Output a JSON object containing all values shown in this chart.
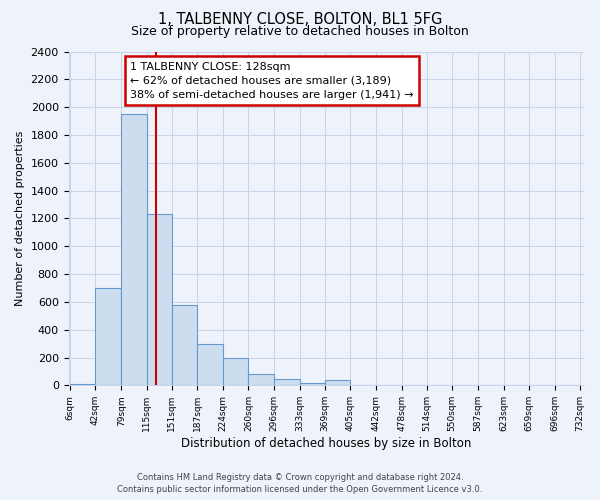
{
  "title": "1, TALBENNY CLOSE, BOLTON, BL1 5FG",
  "subtitle": "Size of property relative to detached houses in Bolton",
  "xlabel": "Distribution of detached houses by size in Bolton",
  "ylabel": "Number of detached properties",
  "bin_edges": [
    6,
    42,
    79,
    115,
    151,
    187,
    224,
    260,
    296,
    333,
    369,
    405,
    442,
    478,
    514,
    550,
    587,
    623,
    659,
    696,
    732
  ],
  "bar_heights": [
    10,
    700,
    1950,
    1230,
    580,
    300,
    200,
    80,
    45,
    20,
    35,
    5,
    3,
    2,
    1,
    1,
    1,
    1,
    1,
    1
  ],
  "bar_color": "#ccddf0",
  "bar_edge_color": "#6699cc",
  "property_line_x": 128,
  "property_line_color": "#cc0000",
  "annotation_title": "1 TALBENNY CLOSE: 128sqm",
  "annotation_line1": "← 62% of detached houses are smaller (3,189)",
  "annotation_line2": "38% of semi-detached houses are larger (1,941) →",
  "annotation_box_color": "#ffffff",
  "annotation_box_edge": "#cc0000",
  "ylim": [
    0,
    2400
  ],
  "yticks": [
    0,
    200,
    400,
    600,
    800,
    1000,
    1200,
    1400,
    1600,
    1800,
    2000,
    2200,
    2400
  ],
  "footer1": "Contains HM Land Registry data © Crown copyright and database right 2024.",
  "footer2": "Contains public sector information licensed under the Open Government Licence v3.0.",
  "background_color": "#eef2fa",
  "grid_color": "#c8d4e8"
}
